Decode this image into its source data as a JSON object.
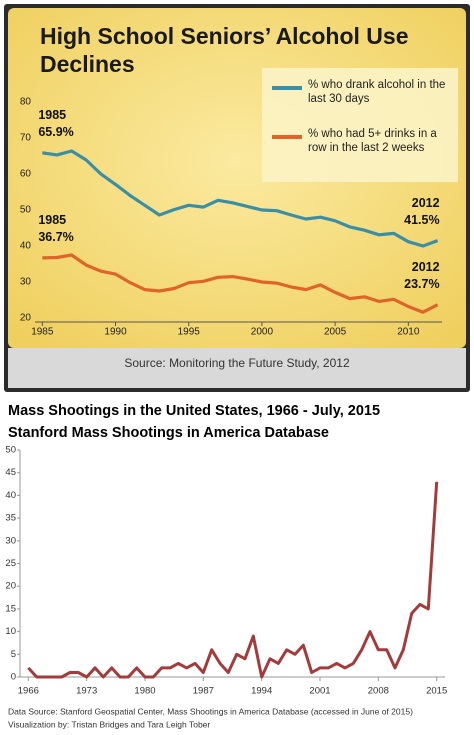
{
  "chart_data": [
    {
      "type": "line",
      "title": "High School Seniors’ Alcohol Use Declines",
      "source": "Source: Monitoring the Future Study, 2012",
      "x": [
        1985,
        1986,
        1987,
        1988,
        1989,
        1990,
        1991,
        1992,
        1993,
        1994,
        1995,
        1996,
        1997,
        1998,
        1999,
        2000,
        2001,
        2002,
        2003,
        2004,
        2005,
        2006,
        2007,
        2008,
        2009,
        2010,
        2011,
        2012
      ],
      "series": [
        {
          "name": "% who drank alcohol in the last 30 days",
          "color": "#3a8fa6",
          "values": [
            65.9,
            65.3,
            66.4,
            63.9,
            60.0,
            57.1,
            54.0,
            51.3,
            48.6,
            50.1,
            51.3,
            50.8,
            52.7,
            52.0,
            51.0,
            50.0,
            49.8,
            48.6,
            47.5,
            48.0,
            47.0,
            45.3,
            44.4,
            43.1,
            43.5,
            41.2,
            40.0,
            41.5
          ],
          "value_labels": [
            "65.9%",
            null,
            null,
            null,
            null,
            null,
            null,
            null,
            null,
            null,
            null,
            null,
            null,
            null,
            null,
            null,
            null,
            null,
            null,
            null,
            null,
            null,
            null,
            null,
            null,
            null,
            null,
            "41.5%"
          ]
        },
        {
          "name": "% who had 5+ drinks in a row in the last 2 weeks",
          "color": "#e0642a",
          "values": [
            36.7,
            36.8,
            37.5,
            34.7,
            33.0,
            32.2,
            29.8,
            27.9,
            27.5,
            28.2,
            29.8,
            30.2,
            31.3,
            31.5,
            30.8,
            30.0,
            29.7,
            28.6,
            27.9,
            29.2,
            27.1,
            25.4,
            25.9,
            24.6,
            25.2,
            23.2,
            21.6,
            23.7
          ],
          "value_labels": [
            "36.7%",
            null,
            null,
            null,
            null,
            null,
            null,
            null,
            null,
            null,
            null,
            null,
            null,
            null,
            null,
            null,
            null,
            null,
            null,
            null,
            null,
            null,
            null,
            null,
            null,
            null,
            null,
            "23.7%"
          ]
        }
      ],
      "xlim": [
        1984.5,
        2012.3
      ],
      "xticks": [
        1985,
        1990,
        1995,
        2000,
        2005,
        2010
      ],
      "ylim": [
        20,
        80
      ],
      "yticks": [
        20,
        30,
        40,
        50,
        60,
        70,
        80
      ],
      "grid": false,
      "legend": "top-right"
    },
    {
      "type": "line",
      "title": "Mass Shootings in the United States, 1966 - July, 2015",
      "subtitle": "Stanford Mass Shootings in America Database",
      "footer": [
        "Data Source: Stanford Geospatial Center, Mass Shootings in America Database (accessed in June of 2015)",
        "Visualization by: Tristan Bridges and Tara Leigh Tober"
      ],
      "x": [
        1966,
        1967,
        1968,
        1969,
        1970,
        1971,
        1972,
        1973,
        1974,
        1975,
        1976,
        1977,
        1978,
        1979,
        1980,
        1981,
        1982,
        1983,
        1984,
        1985,
        1986,
        1987,
        1988,
        1989,
        1990,
        1991,
        1992,
        1993,
        1994,
        1995,
        1996,
        1997,
        1998,
        1999,
        2000,
        2001,
        2002,
        2003,
        2004,
        2005,
        2006,
        2007,
        2008,
        2009,
        2010,
        2011,
        2012,
        2013,
        2014,
        2015
      ],
      "series": [
        {
          "color": "#a33b3b",
          "values": [
            2,
            0,
            0,
            0,
            0,
            1,
            1,
            0,
            2,
            0,
            2,
            0,
            0,
            2,
            0,
            0,
            2,
            2,
            3,
            2,
            3,
            1,
            6,
            3,
            1,
            5,
            4,
            9,
            0,
            4,
            3,
            6,
            5,
            7,
            1,
            2,
            2,
            3,
            2,
            3,
            6,
            10,
            6,
            6,
            2,
            6,
            14,
            16,
            15,
            43
          ]
        }
      ],
      "xlim": [
        1965,
        2016
      ],
      "xticks": [
        1966,
        1973,
        1980,
        1987,
        1994,
        2001,
        2008,
        2015
      ],
      "ylim": [
        0,
        50
      ],
      "yticks": [
        0,
        5,
        10,
        15,
        20,
        25,
        30,
        35,
        40,
        45,
        50
      ],
      "grid": false
    }
  ]
}
